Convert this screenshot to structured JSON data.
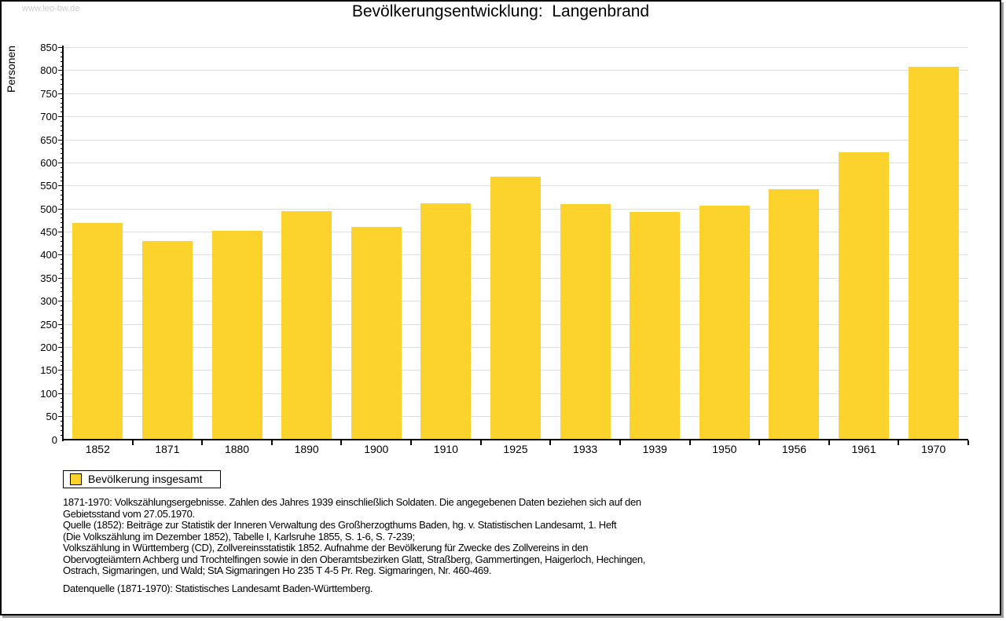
{
  "watermark": "www.leo-bw.de",
  "title": "Bevölkerungsentwicklung:  Langenbrand",
  "y_axis_label": "Personen",
  "legend": {
    "label": "Bevölkerung insgesamt"
  },
  "colors": {
    "bar": "#FCD32D",
    "grid": "#DEDEDE",
    "axis": "#000000",
    "watermark": "#CCCCCC",
    "page_border": "#000000",
    "shadow": "#9E9E9E"
  },
  "chart_data": {
    "type": "bar",
    "categories": [
      "1852",
      "1871",
      "1880",
      "1890",
      "1900",
      "1910",
      "1925",
      "1933",
      "1939",
      "1950",
      "1956",
      "1961",
      "1970"
    ],
    "values": [
      470,
      430,
      453,
      496,
      462,
      513,
      570,
      511,
      494,
      507,
      542,
      622,
      808
    ],
    "series_name": "Bevölkerung insgesamt",
    "title": "Bevölkerungsentwicklung: Langenbrand",
    "xlabel": "",
    "ylabel": "Personen",
    "ylim": [
      0,
      850
    ],
    "y_major_step": 50,
    "y_minor_step": 10,
    "grid": true,
    "legend_position": "bottom-left"
  },
  "footer": {
    "lines": [
      "1871-1970: Volkszählungsergebnisse. Zahlen des Jahres 1939 einschließlich Soldaten. Die angegebenen Daten beziehen sich auf den",
      "Gebietsstand vom 27.05.1970.",
      "Quelle (1852): Beiträge zur Statistik der Inneren Verwaltung des Großherzogthums Baden, hg. v. Statistischen Landesamt, 1. Heft",
      "(Die Volkszählung im Dezember 1852), Tabelle I, Karlsruhe 1855, S. 1-6, S. 7-239;",
      "Volkszählung in Württemberg (CD), Zollvereinsstatistik 1852. Aufnahme der Bevölkerung für Zwecke des Zollvereins in den",
      "Obervogteiämtern Achberg und Trochtelfingen sowie in den Oberamtsbezirken Glatt, Straßberg, Gammertingen, Haigerloch, Hechingen,",
      "Ostrach, Sigmaringen, und Wald; StA Sigmaringen Ho 235 T 4-5 Pr. Reg. Sigmaringen, Nr. 460-469."
    ],
    "source_line": "Datenquelle (1871-1970): Statistisches Landesamt Baden-Württemberg."
  }
}
